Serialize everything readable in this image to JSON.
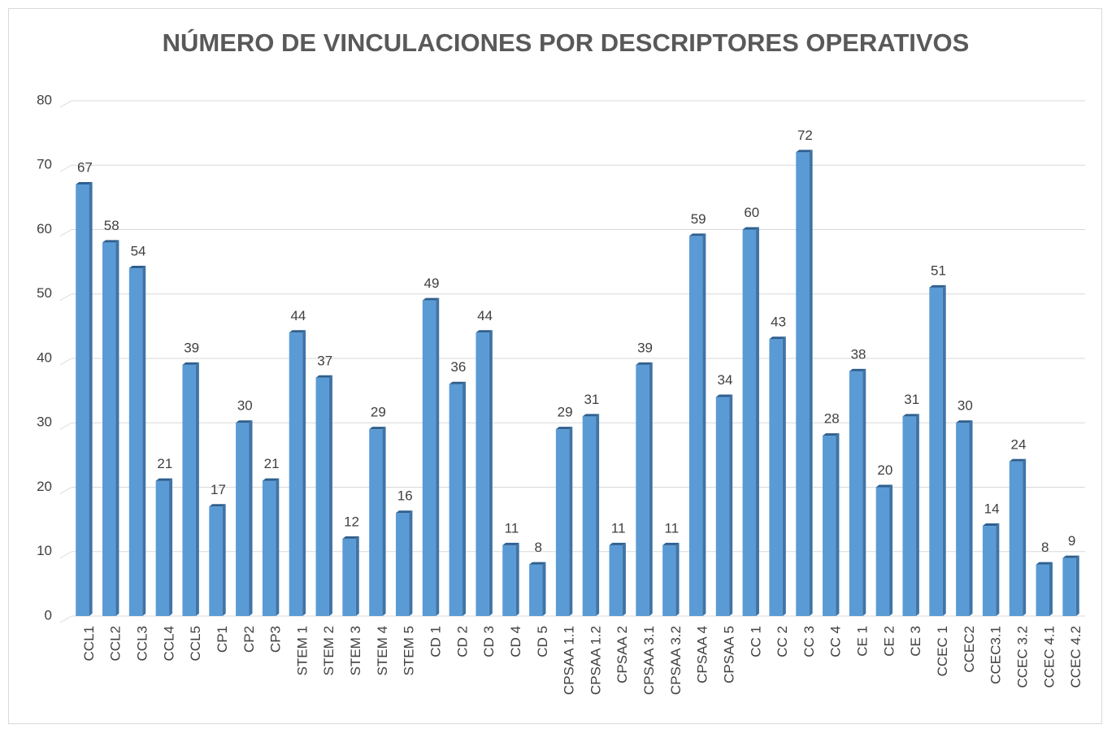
{
  "chart_data": {
    "type": "bar",
    "title": "NÚMERO DE VINCULACIONES POR DESCRIPTORES OPERATIVOS",
    "categories": [
      "CCL1",
      "CCL2",
      "CCL3",
      "CCL4",
      "CCL5",
      "CP1",
      "CP2",
      "CP3",
      "STEM 1",
      "STEM 2",
      "STEM 3",
      "STEM 4",
      "STEM 5",
      "CD 1",
      "CD 2",
      "CD 3",
      "CD 4",
      "CD 5",
      "CPSAA 1.1",
      "CPSAA 1.2",
      "CPSAA 2",
      "CPSAA 3.1",
      "CPSAA 3.2",
      "CPSAA 4",
      "CPSAA 5",
      "CC 1",
      "CC 2",
      "CC 3",
      "CC 4",
      "CE 1",
      "CE 2",
      "CE 3",
      "CCEC 1",
      "CCEC2",
      "CCEC3.1",
      "CCEC 3.2",
      "CCEC 4.1",
      "CCEC 4.2"
    ],
    "values": [
      67,
      58,
      54,
      21,
      39,
      17,
      30,
      21,
      44,
      37,
      12,
      29,
      16,
      49,
      36,
      44,
      11,
      8,
      29,
      31,
      11,
      39,
      11,
      59,
      34,
      60,
      43,
      72,
      28,
      38,
      20,
      31,
      51,
      30,
      14,
      24,
      8,
      9
    ],
    "color": "#5b9bd5",
    "ylim": [
      0,
      80
    ],
    "yticks": [
      0,
      10,
      20,
      30,
      40,
      50,
      60,
      70,
      80
    ],
    "grid": true
  }
}
